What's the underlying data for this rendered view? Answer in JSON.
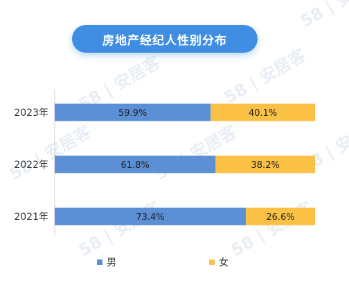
{
  "chart_data": {
    "type": "bar",
    "stacked": true,
    "orientation": "horizontal",
    "percent": true,
    "title": "房地产经纪人性别分布",
    "categories": [
      "2023年",
      "2022年",
      "2021年"
    ],
    "series": [
      {
        "name": "男",
        "values": [
          59.9,
          61.8,
          73.4
        ],
        "labels": [
          "59.9%",
          "61.8%",
          "73.4%"
        ],
        "color": "#5b8fd6"
      },
      {
        "name": "女",
        "values": [
          40.1,
          38.2,
          26.6
        ],
        "labels": [
          "40.1%",
          "38.2%",
          "26.6%"
        ],
        "color": "#fbc145"
      }
    ],
    "xlim": [
      0,
      100
    ],
    "grid": false,
    "legend_position": "bottom"
  },
  "watermark": {
    "text": "58 | 安居客"
  }
}
